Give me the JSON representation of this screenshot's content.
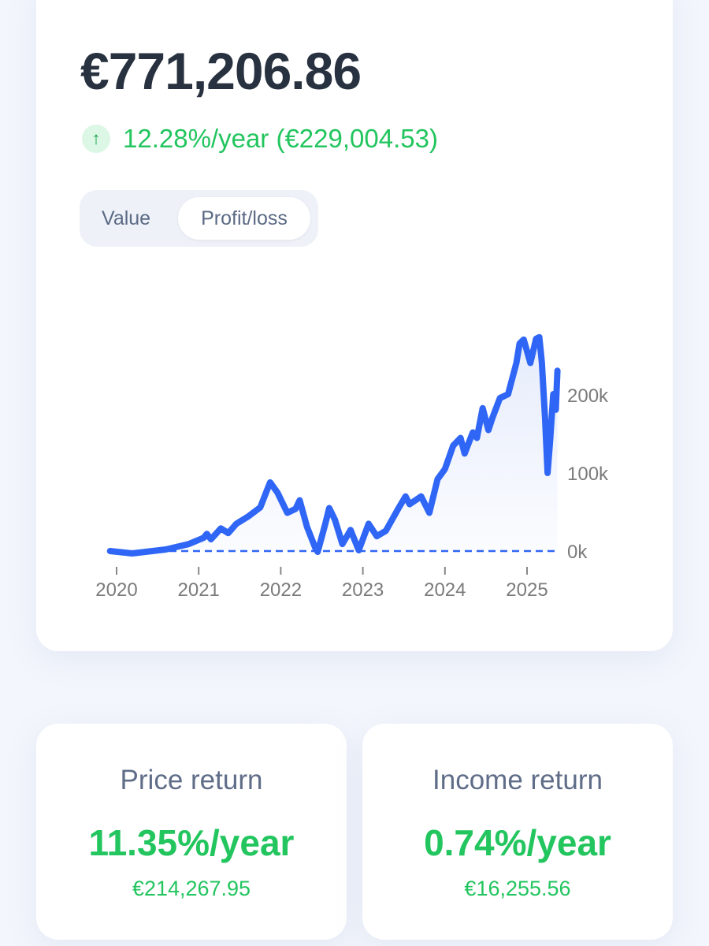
{
  "summary": {
    "total_value": "€771,206.86",
    "change_text": "12.28%/year (€229,004.53)",
    "change_direction": "up",
    "arrow_icon": "arrow-up-icon"
  },
  "toggle": {
    "options": [
      "Value",
      "Profit/loss"
    ],
    "selected": "Profit/loss"
  },
  "colors": {
    "line": "#2f66f5",
    "positive": "#22c55e",
    "title": "#28313f"
  },
  "chart_data": {
    "type": "area",
    "x_unit": "year",
    "y_unit": "k EUR",
    "x_ticks": [
      "2020",
      "2021",
      "2022",
      "2023",
      "2024",
      "2025"
    ],
    "y_ticks": [
      "0k",
      "100k",
      "200k"
    ],
    "ylim": [
      0,
      280
    ],
    "zero_line": "dashed",
    "grid": false,
    "x": [
      2019.92,
      2020.19,
      2020.6,
      2020.88,
      2021.06,
      2021.1,
      2021.15,
      2021.27,
      2021.36,
      2021.46,
      2021.6,
      2021.75,
      2021.84,
      2021.87,
      2021.96,
      2022.08,
      2022.18,
      2022.23,
      2022.32,
      2022.42,
      2022.45,
      2022.54,
      2022.59,
      2022.66,
      2022.75,
      2022.85,
      2022.95,
      2023.07,
      2023.17,
      2023.28,
      2023.43,
      2023.52,
      2023.57,
      2023.71,
      2023.81,
      2023.91,
      2024.0,
      2024.1,
      2024.19,
      2024.24,
      2024.34,
      2024.39,
      2024.46,
      2024.53,
      2024.58,
      2024.67,
      2024.77,
      2024.87,
      2024.91,
      2024.96,
      2025.04,
      2025.11,
      2025.15,
      2025.18,
      2025.22,
      2025.25,
      2025.28,
      2025.32,
      2025.35,
      2025.37
    ],
    "y": [
      0,
      -3,
      2,
      9,
      17,
      22,
      15,
      29,
      23,
      35,
      44,
      56,
      80,
      88,
      75,
      49,
      54,
      65,
      31,
      4,
      -1,
      34,
      55,
      40,
      9,
      27,
      1,
      35,
      19,
      26,
      54,
      70,
      60,
      70,
      49,
      92,
      105,
      135,
      145,
      125,
      152,
      145,
      183,
      155,
      171,
      196,
      201,
      241,
      266,
      271,
      241,
      272,
      274,
      242,
      170,
      100,
      140,
      201,
      181,
      231
    ]
  },
  "cards": [
    {
      "label": "Price return",
      "rate": "11.35%/year",
      "amount": "€214,267.95"
    },
    {
      "label": "Income return",
      "rate": "0.74%/year",
      "amount": "€16,255.56"
    }
  ]
}
